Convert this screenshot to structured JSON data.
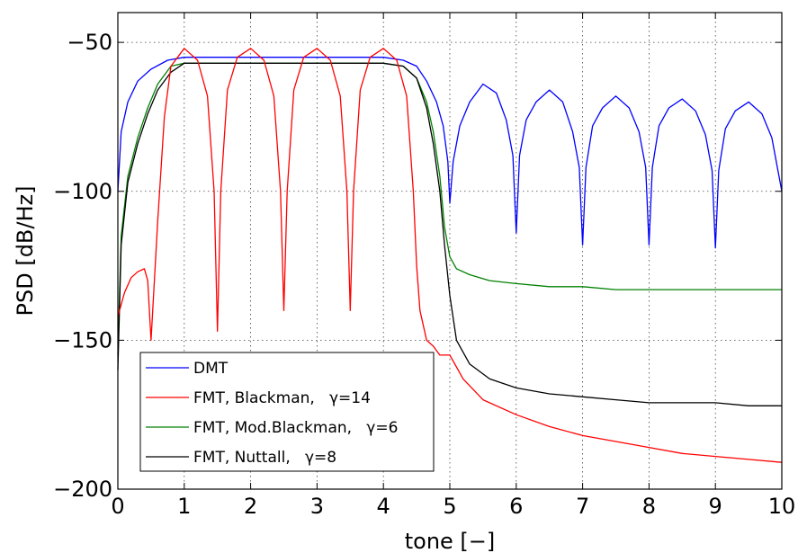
{
  "chart_data": {
    "type": "line",
    "title": "",
    "xlabel": "tone [−]",
    "ylabel": "PSD [dB/Hz]",
    "xlim": [
      0,
      10
    ],
    "ylim": [
      -200,
      -40
    ],
    "xticks": [
      "0",
      "1",
      "2",
      "3",
      "4",
      "5",
      "6",
      "7",
      "8",
      "9",
      "10"
    ],
    "yticks": [
      "−50",
      "−100",
      "−150",
      "−200"
    ],
    "grid": true,
    "legend_position": "bottom-left",
    "series": [
      {
        "name": "DMT",
        "color": "#0000ff",
        "x": [
          0,
          0.05,
          0.15,
          0.3,
          0.5,
          0.75,
          1,
          1.3,
          1.6,
          2,
          2.5,
          3,
          3.5,
          4,
          4.3,
          4.5,
          4.65,
          4.8,
          4.9,
          4.97,
          5,
          5.05,
          5.15,
          5.3,
          5.5,
          5.7,
          5.85,
          5.95,
          6,
          6.05,
          6.15,
          6.3,
          6.5,
          6.7,
          6.85,
          6.95,
          7,
          7.05,
          7.15,
          7.3,
          7.5,
          7.7,
          7.85,
          7.95,
          8,
          8.05,
          8.15,
          8.3,
          8.5,
          8.7,
          8.85,
          8.95,
          9,
          9.05,
          9.15,
          9.3,
          9.5,
          9.7,
          9.85,
          10
        ],
        "y": [
          -100,
          -80,
          -70,
          -63,
          -59,
          -56,
          -55,
          -55,
          -55,
          -55,
          -55,
          -55,
          -55,
          -55,
          -56,
          -58,
          -63,
          -70,
          -78,
          -90,
          -104,
          -90,
          -78,
          -70,
          -64,
          -67,
          -76,
          -88,
          -114,
          -88,
          -76,
          -70,
          -66,
          -70,
          -80,
          -92,
          -118,
          -92,
          -78,
          -72,
          -68,
          -72,
          -80,
          -92,
          -118,
          -92,
          -78,
          -72,
          -69,
          -73,
          -81,
          -93,
          -119,
          -93,
          -79,
          -73,
          -70,
          -74,
          -82,
          -100
        ]
      },
      {
        "name": "FMT, Blackman,   γ=14",
        "color": "#ff0000",
        "x": [
          0,
          0.1,
          0.2,
          0.3,
          0.4,
          0.45,
          0.5,
          0.6,
          0.7,
          0.8,
          1,
          1.2,
          1.35,
          1.45,
          1.5,
          1.55,
          1.65,
          1.8,
          2,
          2.2,
          2.35,
          2.45,
          2.5,
          2.55,
          2.65,
          2.8,
          3,
          3.2,
          3.35,
          3.45,
          3.5,
          3.55,
          3.65,
          3.8,
          4,
          4.2,
          4.35,
          4.45,
          4.5,
          4.55,
          4.65,
          4.75,
          4.85,
          5,
          5.2,
          5.5,
          6,
          6.5,
          7,
          7.5,
          8,
          8.5,
          9,
          9.5,
          10
        ],
        "y": [
          -142,
          -134,
          -129,
          -127,
          -126,
          -130,
          -150,
          -110,
          -75,
          -58,
          -52,
          -56,
          -68,
          -100,
          -147,
          -100,
          -66,
          -55,
          -52,
          -56,
          -68,
          -100,
          -140,
          -100,
          -66,
          -55,
          -52,
          -56,
          -68,
          -100,
          -140,
          -100,
          -66,
          -55,
          -52,
          -56,
          -68,
          -100,
          -125,
          -140,
          -150,
          -152,
          -155,
          -155,
          -163,
          -170,
          -175,
          -179,
          -182,
          -184,
          -186,
          -188,
          -189,
          -190,
          -191
        ]
      },
      {
        "name": "FMT, Mod.Blackman,   γ=6",
        "color": "#008000",
        "x": [
          0,
          0.05,
          0.15,
          0.3,
          0.45,
          0.6,
          0.8,
          1,
          1.5,
          2,
          2.5,
          3,
          3.5,
          4,
          4.3,
          4.5,
          4.65,
          4.75,
          4.85,
          4.92,
          5,
          5.1,
          5.3,
          5.6,
          6,
          6.5,
          7,
          7.5,
          8,
          8.5,
          9,
          9.5,
          10
        ],
        "y": [
          -155,
          -115,
          -95,
          -82,
          -72,
          -64,
          -58,
          -57,
          -57,
          -57,
          -57,
          -57,
          -57,
          -57,
          -58,
          -62,
          -70,
          -80,
          -95,
          -112,
          -122,
          -126,
          -128,
          -130,
          -131,
          -132,
          -132,
          -133,
          -133,
          -133,
          -133,
          -133,
          -133
        ]
      },
      {
        "name": "FMT, Nuttall,   γ=8",
        "color": "#000000",
        "x": [
          0,
          0.05,
          0.15,
          0.3,
          0.45,
          0.6,
          0.8,
          1,
          1.5,
          2,
          2.5,
          3,
          3.5,
          4,
          4.3,
          4.5,
          4.65,
          4.75,
          4.85,
          4.92,
          5,
          5.1,
          5.3,
          5.6,
          6,
          6.5,
          7,
          7.5,
          8,
          8.5,
          9,
          9.5,
          10
        ],
        "y": [
          -160,
          -118,
          -97,
          -84,
          -74,
          -66,
          -60,
          -57,
          -57,
          -57,
          -57,
          -57,
          -57,
          -57,
          -58,
          -62,
          -72,
          -84,
          -100,
          -118,
          -135,
          -150,
          -158,
          -163,
          -166,
          -168,
          -169,
          -170,
          -171,
          -171,
          -171,
          -172,
          -172
        ]
      }
    ]
  }
}
